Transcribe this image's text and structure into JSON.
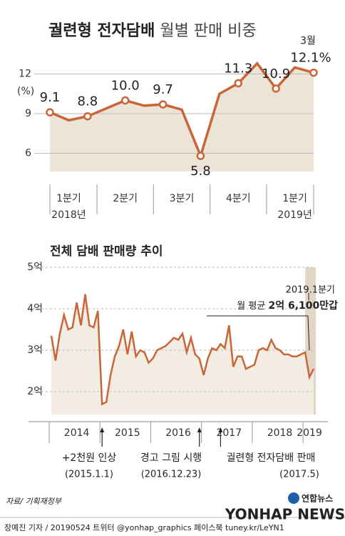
{
  "chart_data": [
    {
      "type": "line",
      "title": [
        "궐련형 전자담배",
        "월별 판매 비중"
      ],
      "y_label": "(%)",
      "categories": [
        null,
        "1분기",
        null,
        null,
        "2분기",
        null,
        null,
        "3분기",
        null,
        null,
        "4분기",
        null,
        null,
        "1분기",
        null
      ],
      "year_labels": [
        "2018년",
        "2019년"
      ],
      "values": [
        9.1,
        8.5,
        8.8,
        9.4,
        10.0,
        9.6,
        9.7,
        9.3,
        5.8,
        10.5,
        11.3,
        12.8,
        10.9,
        12.5,
        12.1
      ],
      "value_labels": [
        "9.1",
        null,
        "8.8",
        null,
        "10.0",
        null,
        "9.7",
        null,
        "5.8",
        null,
        "11.3",
        null,
        "10.9",
        null,
        "12.1%"
      ],
      "annotation": "3월",
      "color": "#c8663a",
      "fill": "#ede4d8",
      "ylim": [
        4.62,
        13.3
      ],
      "yticks": [
        6,
        9,
        12
      ],
      "grid": true
    },
    {
      "type": "line",
      "title": "전체 담배 판매량 추이",
      "categories": [
        null,
        null,
        null,
        null,
        null,
        null,
        "2014",
        null,
        null,
        null,
        null,
        null,
        null,
        null,
        null,
        null,
        null,
        null,
        "2015",
        null,
        null,
        null,
        null,
        null,
        null,
        null,
        null,
        null,
        null,
        null,
        "2016",
        null,
        null,
        null,
        null,
        null,
        null,
        null,
        null,
        null,
        null,
        null,
        "2017",
        null,
        null,
        null,
        null,
        null,
        null,
        null,
        null,
        null,
        null,
        null,
        "2018",
        null,
        null,
        null,
        null,
        null,
        null,
        "2019",
        null
      ],
      "values": [
        3.35,
        2.75,
        3.4,
        3.85,
        3.5,
        3.55,
        4.15,
        3.6,
        4.35,
        3.6,
        3.55,
        3.95,
        1.7,
        1.75,
        2.4,
        2.85,
        3.1,
        3.5,
        2.9,
        3.45,
        2.85,
        3.0,
        2.95,
        2.7,
        2.8,
        3.0,
        3.05,
        3.1,
        3.2,
        3.3,
        3.25,
        3.4,
        2.95,
        3.3,
        2.9,
        2.8,
        2.4,
        2.8,
        3.05,
        3.0,
        3.15,
        3.05,
        3.6,
        2.6,
        2.85,
        2.85,
        2.55,
        2.6,
        2.65,
        3.0,
        3.05,
        3.0,
        3.25,
        3.05,
        3.0,
        2.9,
        2.9,
        2.85,
        2.85,
        2.9,
        2.95,
        2.35,
        2.55
      ],
      "color": "#c8663a",
      "fill": "#f3ece3",
      "ylim": [
        1.45,
        5.0
      ],
      "yticks": [
        {
          "value": 2,
          "label": "2억"
        },
        {
          "value": 3,
          "label": "3억"
        },
        {
          "value": 4,
          "label": "4억"
        },
        {
          "value": 5,
          "label": "5억"
        }
      ],
      "grid": true,
      "annotations": [
        [
          "+2천원 인상",
          "(2015.1.1)"
        ],
        [
          "경고 그림 시행",
          "(2016.12.23)"
        ],
        [
          "궐련형 전자담배 판매",
          "(2017.5)"
        ]
      ],
      "callout": {
        "period": "2019.1분기",
        "prefix": "월 평균",
        "value": "2억 6,100만갑"
      }
    }
  ],
  "source": "자료/ 기획재정부",
  "footer": "장예진 기자 / 20190524 트위터 @yonhap_graphics  페이스북 tuney.kr/LeYN1",
  "logo": "연합뉴스",
  "watermark": "YONHAP NEWS"
}
